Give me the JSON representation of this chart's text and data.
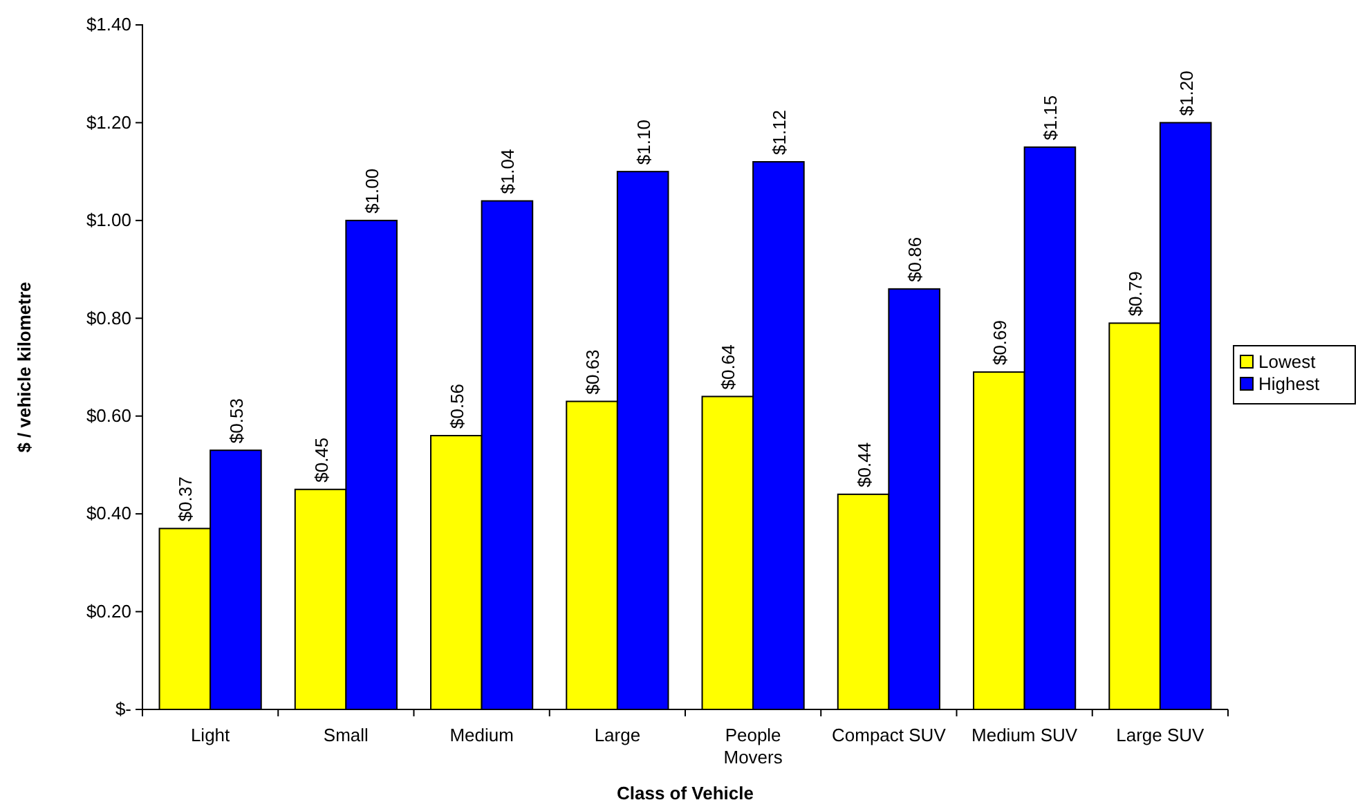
{
  "chart_data": {
    "type": "bar",
    "xlabel": "Class of Vehicle",
    "ylabel": "$ / vehicle kilometre",
    "categories": [
      "Light",
      "Small",
      "Medium",
      "Large",
      "People Movers",
      "Compact SUV",
      "Medium SUV",
      "Large SUV"
    ],
    "series": [
      {
        "name": "Lowest",
        "color": "#ffff00",
        "values": [
          0.37,
          0.45,
          0.56,
          0.63,
          0.64,
          0.44,
          0.69,
          0.79
        ],
        "value_labels": [
          "$0.37",
          "$0.45",
          "$0.56",
          "$0.63",
          "$0.64",
          "$0.44",
          "$0.69",
          "$0.79"
        ]
      },
      {
        "name": "Highest",
        "color": "#0000ff",
        "values": [
          0.53,
          1.0,
          1.04,
          1.1,
          1.12,
          0.86,
          1.15,
          1.2
        ],
        "value_labels": [
          "$0.53",
          "$1.00",
          "$1.04",
          "$1.10",
          "$1.12",
          "$0.86",
          "$1.15",
          "$1.20"
        ]
      }
    ],
    "ylim": [
      0,
      1.4
    ],
    "yticks": [
      {
        "value": 0,
        "label": "$-"
      },
      {
        "value": 0.2,
        "label": "$0.20"
      },
      {
        "value": 0.4,
        "label": "$0.40"
      },
      {
        "value": 0.6,
        "label": "$0.60"
      },
      {
        "value": 0.8,
        "label": "$0.80"
      },
      {
        "value": 1.0,
        "label": "$1.00"
      },
      {
        "value": 1.2,
        "label": "$1.20"
      },
      {
        "value": 1.4,
        "label": "$1.40"
      }
    ],
    "grid": false,
    "legend": "right"
  }
}
